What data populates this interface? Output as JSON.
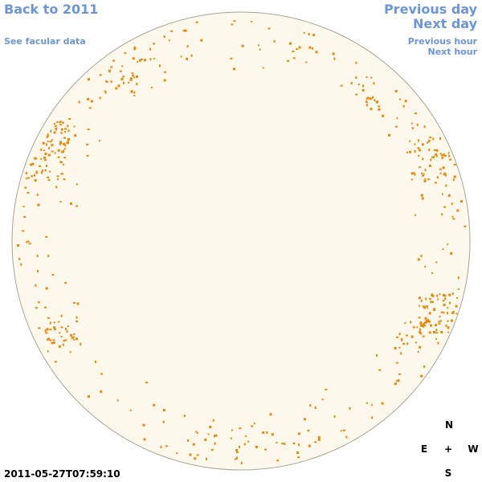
{
  "links": {
    "back": "Back to 2011",
    "facular": "See facular data",
    "previous_day": "Previous day",
    "next_day": "Next day",
    "previous_hour": "Previous hour",
    "next_hour": "Next hour"
  },
  "timestamp": "2011-05-27T07:59:10",
  "compass": {
    "north": "N",
    "east": "E",
    "center": "+",
    "west": "W",
    "south": "S"
  }
}
